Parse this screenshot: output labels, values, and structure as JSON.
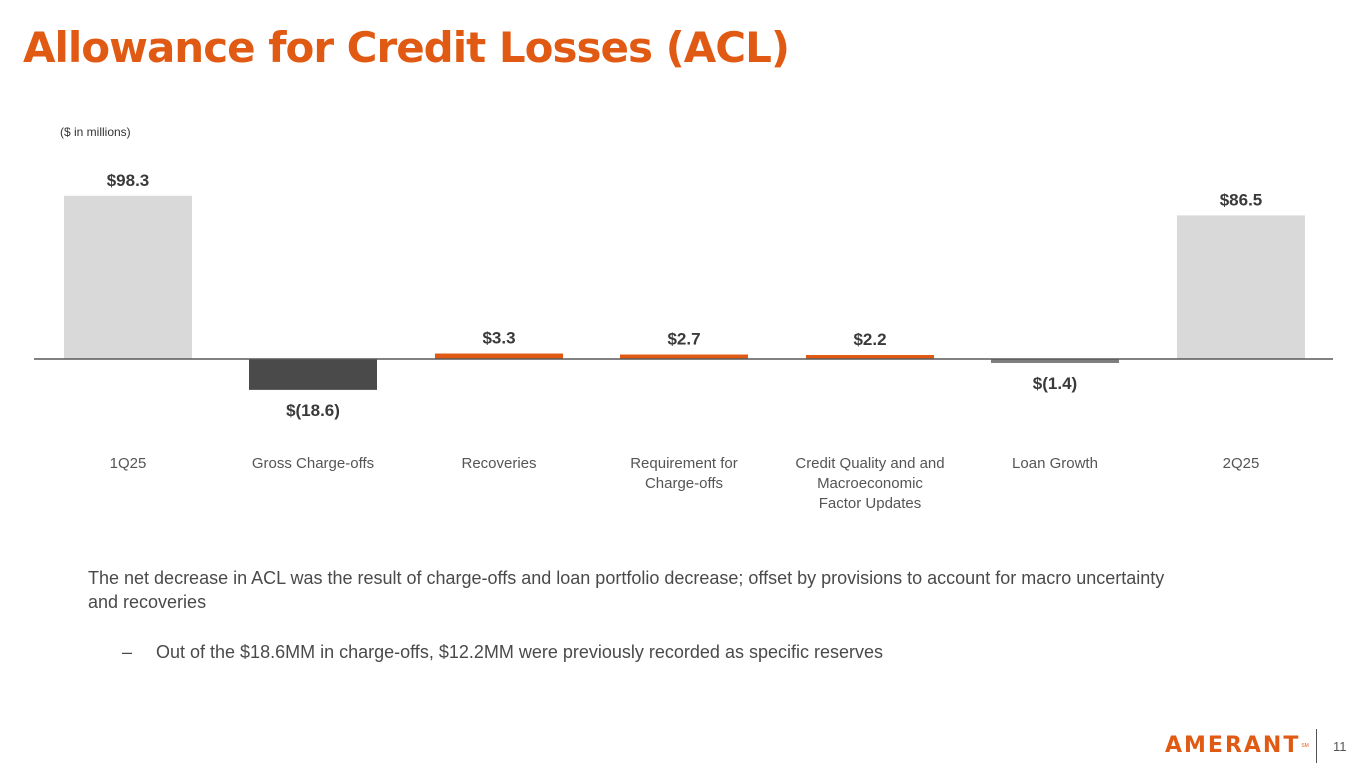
{
  "header": {
    "title": "Allowance for Credit Losses (ACL)"
  },
  "units_note": "($ in millions)",
  "chart_data": {
    "type": "bar",
    "subtype": "waterfall",
    "categories": [
      [
        "1Q25"
      ],
      [
        "Gross Charge-offs"
      ],
      [
        "Recoveries"
      ],
      [
        "Requirement for",
        "Charge-offs"
      ],
      [
        "Credit Quality and and",
        "Macroeconomic",
        "Factor Updates"
      ],
      [
        "Loan Growth"
      ],
      [
        "2Q25"
      ]
    ],
    "values": [
      98.3,
      -18.6,
      3.3,
      2.7,
      2.2,
      -1.4,
      86.5
    ],
    "value_labels": [
      "$98.3",
      "$(18.6)",
      "$3.3",
      "$2.7",
      "$2.2",
      "$(1.4)",
      "$86.5"
    ],
    "colors": [
      "#d9d9d9",
      "#4a4a4a",
      "#e05a14",
      "#e05a14",
      "#e05a14",
      "#7f7f7f",
      "#d9d9d9"
    ],
    "axis_color": "#595959",
    "grid": false,
    "legend": "none"
  },
  "summary": {
    "text": "The net decrease in ACL was the result of charge-offs and loan portfolio decrease; offset by provisions to account for macro uncertainty and recoveries",
    "bullet_marker": "–",
    "bullet": "Out of the $18.6MM in charge-offs, $12.2MM were previously recorded as specific reserves"
  },
  "footer": {
    "logo": "AMERANT",
    "logo_mark": "SM",
    "page_number": "11"
  },
  "colors": {
    "accent": "#e05a14",
    "text": "#4a4a4a"
  }
}
